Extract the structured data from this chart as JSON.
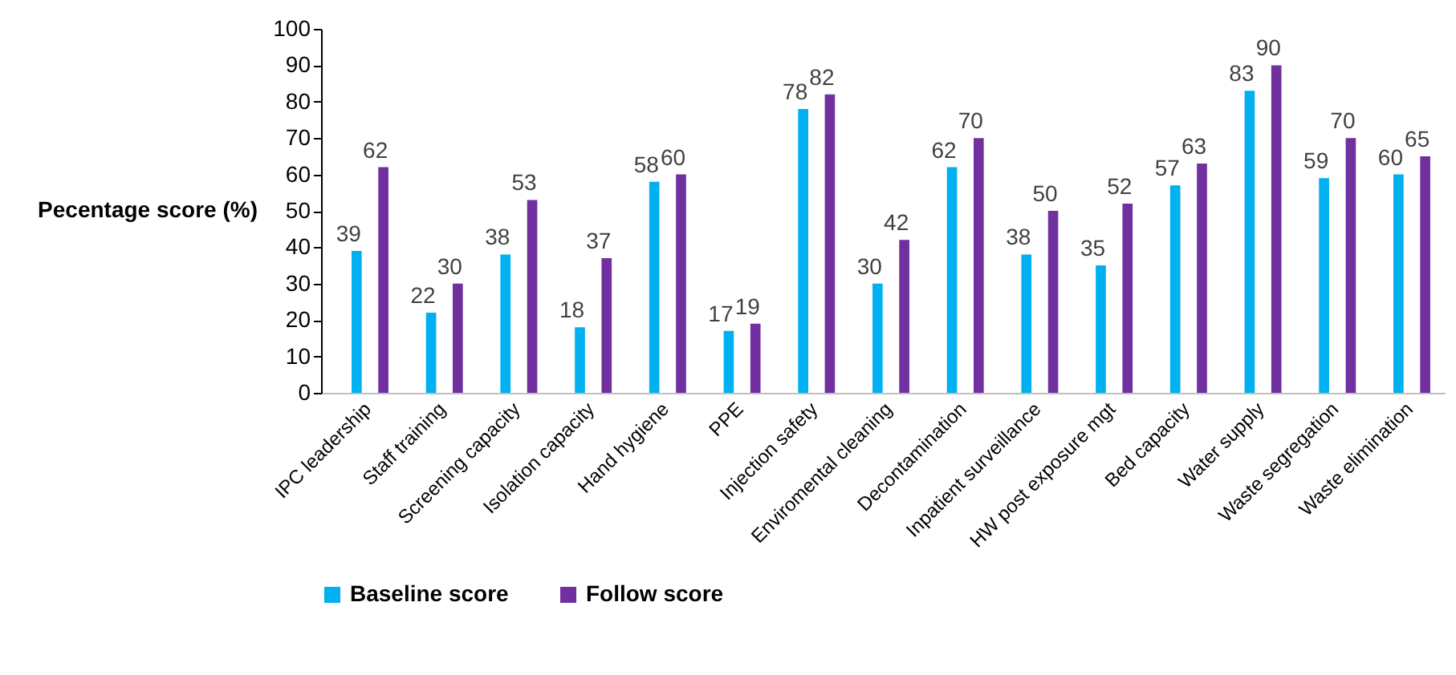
{
  "chart_data": {
    "type": "bar",
    "ylabel": "Pecentage score (%)",
    "categories": [
      "IPC leadership",
      "Staff training",
      "Screening capacity",
      "Isolation capacity",
      "Hand hygiene",
      "PPE",
      "Injection safety",
      "Enviromental cleaning",
      "Decontamination",
      "Inpatient surveillance",
      "HW post exposure mgt",
      "Bed capacity",
      "Water supply",
      "Waste segregation",
      "Waste elimination"
    ],
    "series": [
      {
        "name": "Baseline score",
        "color": "#00b0f0",
        "values": [
          39,
          22,
          38,
          18,
          58,
          17,
          78,
          30,
          62,
          38,
          35,
          57,
          83,
          59,
          60
        ]
      },
      {
        "name": "Follow score",
        "color": "#7030a0",
        "values": [
          62,
          30,
          53,
          37,
          60,
          19,
          82,
          42,
          70,
          50,
          52,
          63,
          90,
          70,
          65
        ]
      }
    ],
    "ylim": [
      0,
      100
    ],
    "yticks": [
      0,
      10,
      20,
      30,
      40,
      50,
      60,
      70,
      80,
      90,
      100
    ],
    "grid": false,
    "legend": "bottom",
    "data_labels": true
  }
}
